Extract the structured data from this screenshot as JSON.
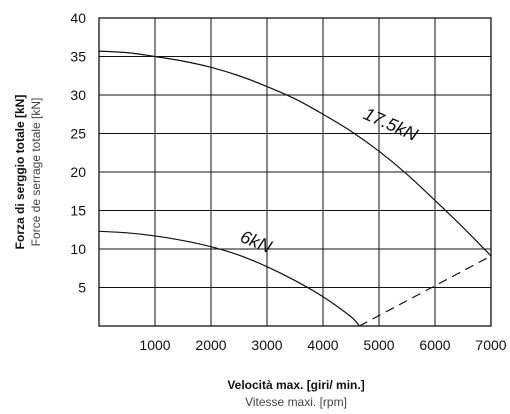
{
  "chart_data": {
    "type": "line",
    "xlabel": "Velocità max. [giri/ min.]",
    "xlabel_secondary": "Vitesse maxi. [rpm]",
    "ylabel": "Forza di serggio totale [kN]",
    "ylabel_secondary": "Force de serrage totale [kN]",
    "xlim": [
      0,
      7000
    ],
    "ylim": [
      0,
      40
    ],
    "grid": true,
    "x_ticks": [
      1000,
      2000,
      3000,
      4000,
      5000,
      6000,
      7000
    ],
    "y_ticks": [
      5,
      10,
      15,
      20,
      25,
      30,
      35,
      40
    ],
    "series": [
      {
        "name": "17.5kN",
        "style": "solid",
        "x": [
          0,
          500,
          1000,
          1500,
          2000,
          2500,
          3000,
          3500,
          4000,
          4500,
          5000,
          5500,
          6000,
          6500,
          7000
        ],
        "y": [
          35.7,
          35.5,
          35.0,
          34.4,
          33.6,
          32.5,
          31.1,
          29.5,
          27.5,
          25.3,
          22.7,
          19.7,
          16.3,
          12.8,
          9.1
        ]
      },
      {
        "name": "6kN",
        "style": "solid",
        "x": [
          0,
          500,
          1000,
          1500,
          2000,
          2500,
          3000,
          3500,
          4000,
          4500,
          4650
        ],
        "y": [
          12.3,
          12.1,
          11.7,
          11.1,
          10.3,
          9.2,
          7.7,
          5.9,
          3.8,
          1.2,
          0
        ]
      },
      {
        "name": "",
        "style": "dashed",
        "x": [
          4650,
          7000
        ],
        "y": [
          0,
          9.1
        ]
      }
    ],
    "curve_labels": [
      {
        "text": "17.5kN",
        "x": 4700,
        "y": 27
      },
      {
        "text": "6kN",
        "x": 2500,
        "y": 11
      }
    ]
  }
}
